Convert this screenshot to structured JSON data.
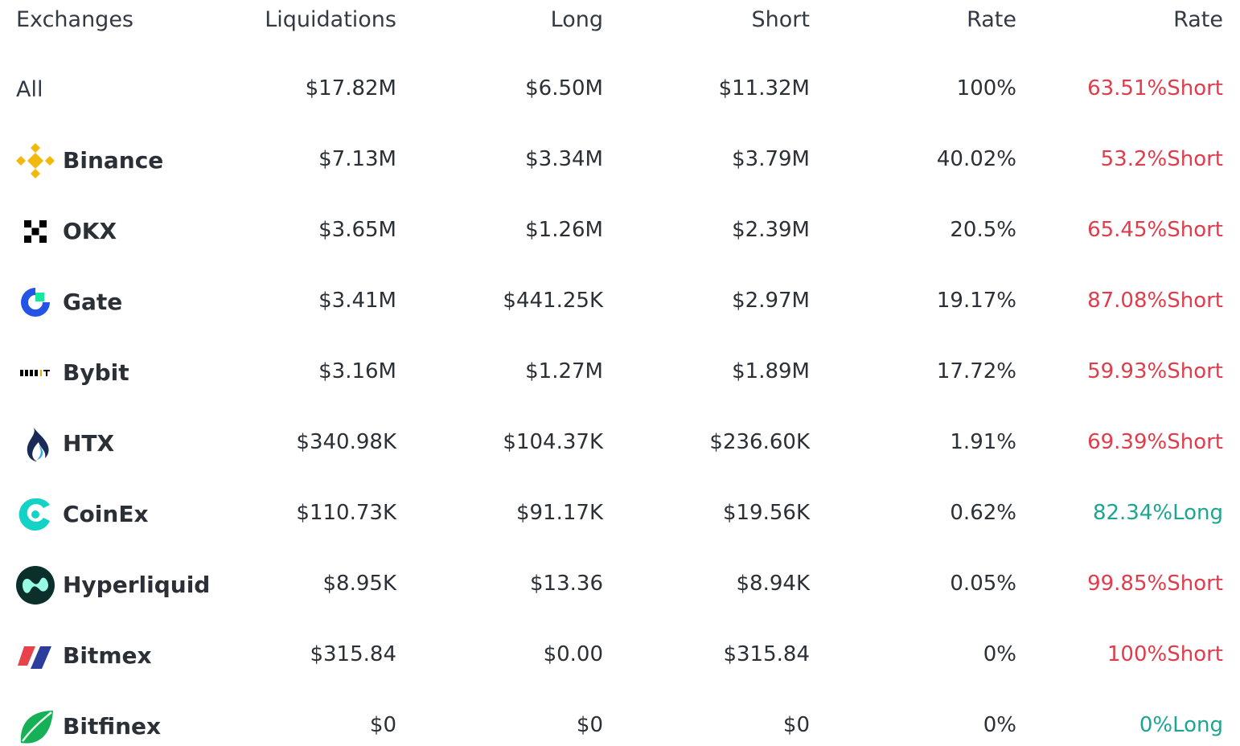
{
  "table": {
    "headers": [
      "Exchanges",
      "Liquidations",
      "Long",
      "Short",
      "Rate",
      "Rate"
    ],
    "rows": [
      {
        "exchange": "All",
        "liquidations": "$17.82M",
        "long": "$6.50M",
        "short": "$11.32M",
        "rate": "100%",
        "side_rate": "63.51%Short",
        "side_color": "#e03c4b"
      },
      {
        "exchange": "Binance",
        "liquidations": "$7.13M",
        "long": "$3.34M",
        "short": "$3.79M",
        "rate": "40.02%",
        "side_rate": "53.2%Short",
        "side_color": "#e03c4b"
      },
      {
        "exchange": "OKX",
        "liquidations": "$3.65M",
        "long": "$1.26M",
        "short": "$2.39M",
        "rate": "20.5%",
        "side_rate": "65.45%Short",
        "side_color": "#e03c4b"
      },
      {
        "exchange": "Gate",
        "liquidations": "$3.41M",
        "long": "$441.25K",
        "short": "$2.97M",
        "rate": "19.17%",
        "side_rate": "87.08%Short",
        "side_color": "#e03c4b"
      },
      {
        "exchange": "Bybit",
        "liquidations": "$3.16M",
        "long": "$1.27M",
        "short": "$1.89M",
        "rate": "17.72%",
        "side_rate": "59.93%Short",
        "side_color": "#e03c4b"
      },
      {
        "exchange": "HTX",
        "liquidations": "$340.98K",
        "long": "$104.37K",
        "short": "$236.60K",
        "rate": "1.91%",
        "side_rate": "69.39%Short",
        "side_color": "#e03c4b"
      },
      {
        "exchange": "CoinEx",
        "liquidations": "$110.73K",
        "long": "$91.17K",
        "short": "$19.56K",
        "rate": "0.62%",
        "side_rate": "82.34%Long",
        "side_color": "#1ea592"
      },
      {
        "exchange": "Hyperliquid",
        "liquidations": "$8.95K",
        "long": "$13.36",
        "short": "$8.94K",
        "rate": "0.05%",
        "side_rate": "99.85%Short",
        "side_color": "#e03c4b"
      },
      {
        "exchange": "Bitmex",
        "liquidations": "$315.84",
        "long": "$0.00",
        "short": "$315.84",
        "rate": "0%",
        "side_rate": "100%Short",
        "side_color": "#e03c4b"
      },
      {
        "exchange": "Bitfinex",
        "liquidations": "$0",
        "long": "$0",
        "short": "$0",
        "rate": "0%",
        "side_rate": "0%Long",
        "side_color": "#1ea592"
      }
    ]
  }
}
